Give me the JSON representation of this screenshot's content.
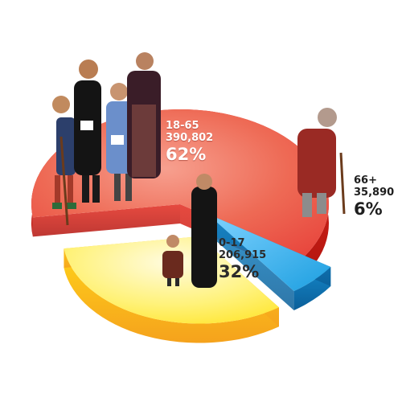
{
  "chart_data": {
    "type": "pie",
    "categories": [
      "18-65",
      "0-17",
      "66+"
    ],
    "values": [
      390802,
      206915,
      35890
    ],
    "percents": [
      "62%",
      "32%",
      "6%"
    ],
    "values_text": [
      "390,802",
      "206,915",
      "35,890"
    ],
    "style": "3d-exploded",
    "colors": {
      "18-65": "#e8463d",
      "0-17": "#ffe92e",
      "66+": "#1d9fe0"
    },
    "legend": "none"
  }
}
